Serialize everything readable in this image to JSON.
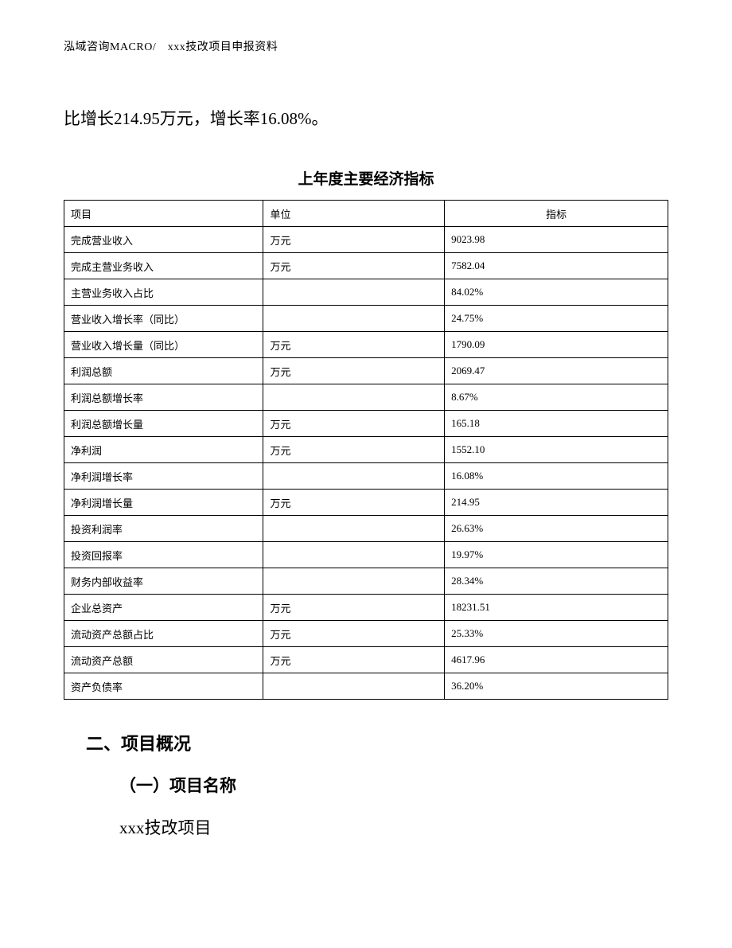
{
  "header": "泓域咨询MACRO/　xxx技改项目申报资料",
  "body_line": "比增长214.95万元，增长率16.08%。",
  "table": {
    "title": "上年度主要经济指标",
    "columns": [
      "项目",
      "单位",
      "指标"
    ],
    "rows": [
      {
        "item": "完成营业收入",
        "unit": "万元",
        "value": "9023.98"
      },
      {
        "item": "完成主营业务收入",
        "unit": "万元",
        "value": "7582.04"
      },
      {
        "item": "主营业务收入占比",
        "unit": "",
        "value": "84.02%"
      },
      {
        "item": "营业收入增长率（同比）",
        "unit": "",
        "value": "24.75%"
      },
      {
        "item": "营业收入增长量（同比）",
        "unit": "万元",
        "value": "1790.09"
      },
      {
        "item": "利润总额",
        "unit": "万元",
        "value": "2069.47"
      },
      {
        "item": "利润总额增长率",
        "unit": "",
        "value": "8.67%"
      },
      {
        "item": "利润总额增长量",
        "unit": "万元",
        "value": "165.18"
      },
      {
        "item": "净利润",
        "unit": "万元",
        "value": "1552.10"
      },
      {
        "item": "净利润增长率",
        "unit": "",
        "value": "16.08%"
      },
      {
        "item": "净利润增长量",
        "unit": "万元",
        "value": "214.95"
      },
      {
        "item": "投资利润率",
        "unit": "",
        "value": "26.63%"
      },
      {
        "item": "投资回报率",
        "unit": "",
        "value": "19.97%"
      },
      {
        "item": "财务内部收益率",
        "unit": "",
        "value": "28.34%"
      },
      {
        "item": "企业总资产",
        "unit": "万元",
        "value": "18231.51"
      },
      {
        "item": "流动资产总额占比",
        "unit": "万元",
        "value": "25.33%"
      },
      {
        "item": "流动资产总额",
        "unit": "万元",
        "value": "4617.96"
      },
      {
        "item": "资产负债率",
        "unit": "",
        "value": "36.20%"
      }
    ]
  },
  "section2": {
    "heading": "二、项目概况",
    "sub": "（一）项目名称",
    "body": "xxx技改项目"
  }
}
